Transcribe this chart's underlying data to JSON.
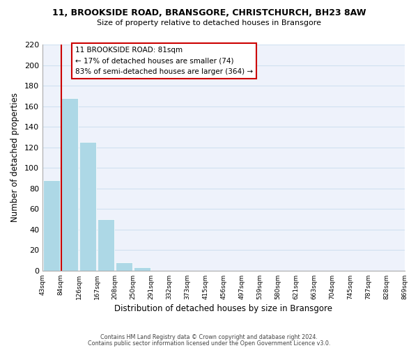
{
  "title_line1": "11, BROOKSIDE ROAD, BRANSGORE, CHRISTCHURCH, BH23 8AW",
  "title_line2": "Size of property relative to detached houses in Bransgore",
  "xlabel": "Distribution of detached houses by size in Bransgore",
  "ylabel": "Number of detached properties",
  "bar_values": [
    88,
    168,
    125,
    50,
    8,
    3,
    0,
    0,
    0,
    0,
    0,
    0,
    0,
    0,
    0,
    0,
    0,
    0,
    0,
    0
  ],
  "bin_labels": [
    "43sqm",
    "84sqm",
    "126sqm",
    "167sqm",
    "208sqm",
    "250sqm",
    "291sqm",
    "332sqm",
    "373sqm",
    "415sqm",
    "456sqm",
    "497sqm",
    "539sqm",
    "580sqm",
    "621sqm",
    "663sqm",
    "704sqm",
    "745sqm",
    "787sqm",
    "828sqm",
    "869sqm"
  ],
  "bar_color": "#add8e6",
  "highlight_line_color": "#cc0000",
  "ylim": [
    0,
    220
  ],
  "yticks": [
    0,
    20,
    40,
    60,
    80,
    100,
    120,
    140,
    160,
    180,
    200,
    220
  ],
  "annotation_title": "11 BROOKSIDE ROAD: 81sqm",
  "annotation_line1": "← 17% of detached houses are smaller (74)",
  "annotation_line2": "83% of semi-detached houses are larger (364) →",
  "annotation_box_color": "#ffffff",
  "annotation_box_edge": "#cc0000",
  "footer_line1": "Contains HM Land Registry data © Crown copyright and database right 2024.",
  "footer_line2": "Contains public sector information licensed under the Open Government Licence v3.0.",
  "grid_color": "#d0e0f0",
  "background_color": "#eef2fb"
}
